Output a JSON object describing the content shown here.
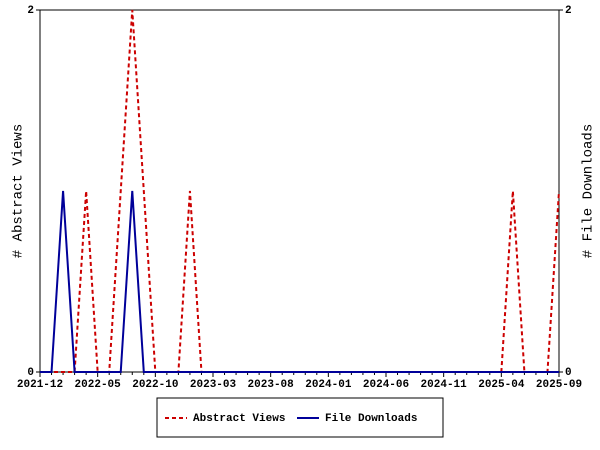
{
  "chart_data": {
    "type": "line",
    "y_label": "# Abstract Views",
    "y2_label": "# File Downloads",
    "categories": [
      "2021-12",
      null,
      null,
      null,
      null,
      "2022-05",
      null,
      null,
      null,
      null,
      "2022-10",
      null,
      null,
      null,
      null,
      "2023-03",
      null,
      null,
      null,
      null,
      "2023-08",
      null,
      null,
      null,
      null,
      "2024-01",
      null,
      null,
      null,
      null,
      "2024-06",
      null,
      null,
      null,
      null,
      "2024-11",
      null,
      null,
      null,
      null,
      "2025-04",
      null,
      null,
      null,
      null,
      "2025-09"
    ],
    "series": [
      {
        "name": "Abstract Views",
        "color": "#cc0000",
        "dashed": true,
        "values": [
          0,
          0,
          0,
          0,
          1,
          0,
          0,
          1,
          2,
          1,
          0,
          0,
          0,
          1,
          0,
          0,
          0,
          0,
          0,
          0,
          0,
          0,
          0,
          0,
          0,
          0,
          0,
          0,
          0,
          0,
          0,
          0,
          0,
          0,
          0,
          0,
          0,
          0,
          0,
          0,
          0,
          1,
          0,
          0,
          0,
          1
        ]
      },
      {
        "name": "File Downloads",
        "color": "#000099",
        "axis": "y2",
        "values": [
          0,
          0,
          1,
          0,
          0,
          0,
          0,
          0,
          1,
          0,
          0,
          0,
          0,
          0,
          0,
          0,
          0,
          0,
          0,
          0,
          0,
          0,
          0,
          0,
          0,
          0,
          0,
          0,
          0,
          0,
          0,
          0,
          0,
          0,
          0,
          0,
          0,
          0,
          0,
          0,
          0,
          0,
          0,
          0,
          0,
          0
        ]
      }
    ],
    "ylim": [
      0,
      2
    ],
    "yticks": [
      0,
      2
    ],
    "y2lim": [
      0,
      2
    ],
    "y2ticks": [
      0,
      2
    ],
    "legend": "bottom"
  }
}
